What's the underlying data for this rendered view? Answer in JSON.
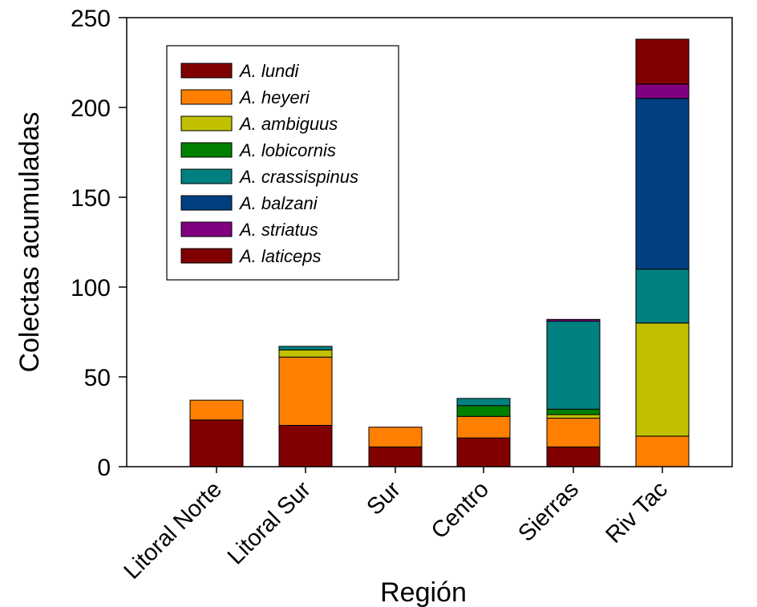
{
  "chart_data": {
    "type": "bar",
    "stacked": true,
    "xlabel": "Región",
    "ylabel": "Colectas acumuladas",
    "ylim": [
      0,
      250
    ],
    "yticks": [
      "0",
      "50",
      "100",
      "150",
      "200",
      "250"
    ],
    "categories": [
      "Litoral Norte",
      "Litoral Sur",
      "Sur",
      "Centro",
      "Sierras",
      "Riv Tac"
    ],
    "legend_position": "top-left",
    "grid": false,
    "series": [
      {
        "name": "A. lundi",
        "color": "#800000",
        "values": [
          26,
          23,
          11,
          16,
          11,
          0
        ]
      },
      {
        "name": "A. heyeri",
        "color": "#ff8000",
        "values": [
          11,
          38,
          11,
          12,
          16,
          17
        ]
      },
      {
        "name": "A. ambiguus",
        "color": "#c0c000",
        "values": [
          0,
          4,
          0,
          0,
          2,
          63
        ]
      },
      {
        "name": "A. lobicornis",
        "color": "#008000",
        "values": [
          0,
          0,
          0,
          6,
          3,
          0
        ]
      },
      {
        "name": "A. crassispinus",
        "color": "#008080",
        "values": [
          0,
          2,
          0,
          4,
          49,
          30
        ]
      },
      {
        "name": "A. balzani",
        "color": "#004080",
        "values": [
          0,
          0,
          0,
          0,
          0,
          95
        ]
      },
      {
        "name": "A. striatus",
        "color": "#800080",
        "values": [
          0,
          0,
          0,
          0,
          1,
          8
        ]
      },
      {
        "name": "A. laticeps",
        "color": "#800000",
        "values": [
          0,
          0,
          0,
          0,
          0,
          25
        ]
      }
    ]
  }
}
